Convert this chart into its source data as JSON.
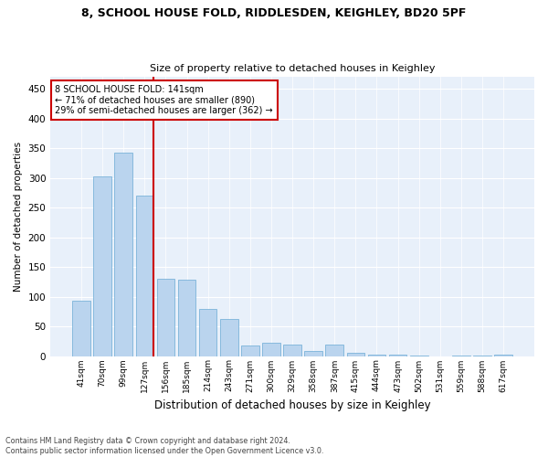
{
  "title": "8, SCHOOL HOUSE FOLD, RIDDLESDEN, KEIGHLEY, BD20 5PF",
  "subtitle": "Size of property relative to detached houses in Keighley",
  "xlabel": "Distribution of detached houses by size in Keighley",
  "ylabel": "Number of detached properties",
  "bar_color": "#bad4ee",
  "bar_edge_color": "#6aaad4",
  "background_color": "#e8f0fa",
  "annotation_box_text": "8 SCHOOL HOUSE FOLD: 141sqm\n← 71% of detached houses are smaller (890)\n29% of semi-detached houses are larger (362) →",
  "vline_color": "#cc0000",
  "categories": [
    "41sqm",
    "70sqm",
    "99sqm",
    "127sqm",
    "156sqm",
    "185sqm",
    "214sqm",
    "243sqm",
    "271sqm",
    "300sqm",
    "329sqm",
    "358sqm",
    "387sqm",
    "415sqm",
    "444sqm",
    "473sqm",
    "502sqm",
    "531sqm",
    "559sqm",
    "588sqm",
    "617sqm"
  ],
  "values": [
    93,
    302,
    342,
    270,
    130,
    128,
    80,
    62,
    18,
    22,
    20,
    8,
    20,
    5,
    2,
    2,
    1,
    0,
    1,
    1,
    2
  ],
  "ylim": [
    0,
    470
  ],
  "yticks": [
    0,
    50,
    100,
    150,
    200,
    250,
    300,
    350,
    400,
    450
  ],
  "footnote": "Contains HM Land Registry data © Crown copyright and database right 2024.\nContains public sector information licensed under the Open Government Licence v3.0.",
  "vline_bar_index": 3,
  "fig_width": 6.0,
  "fig_height": 5.0,
  "dpi": 100
}
